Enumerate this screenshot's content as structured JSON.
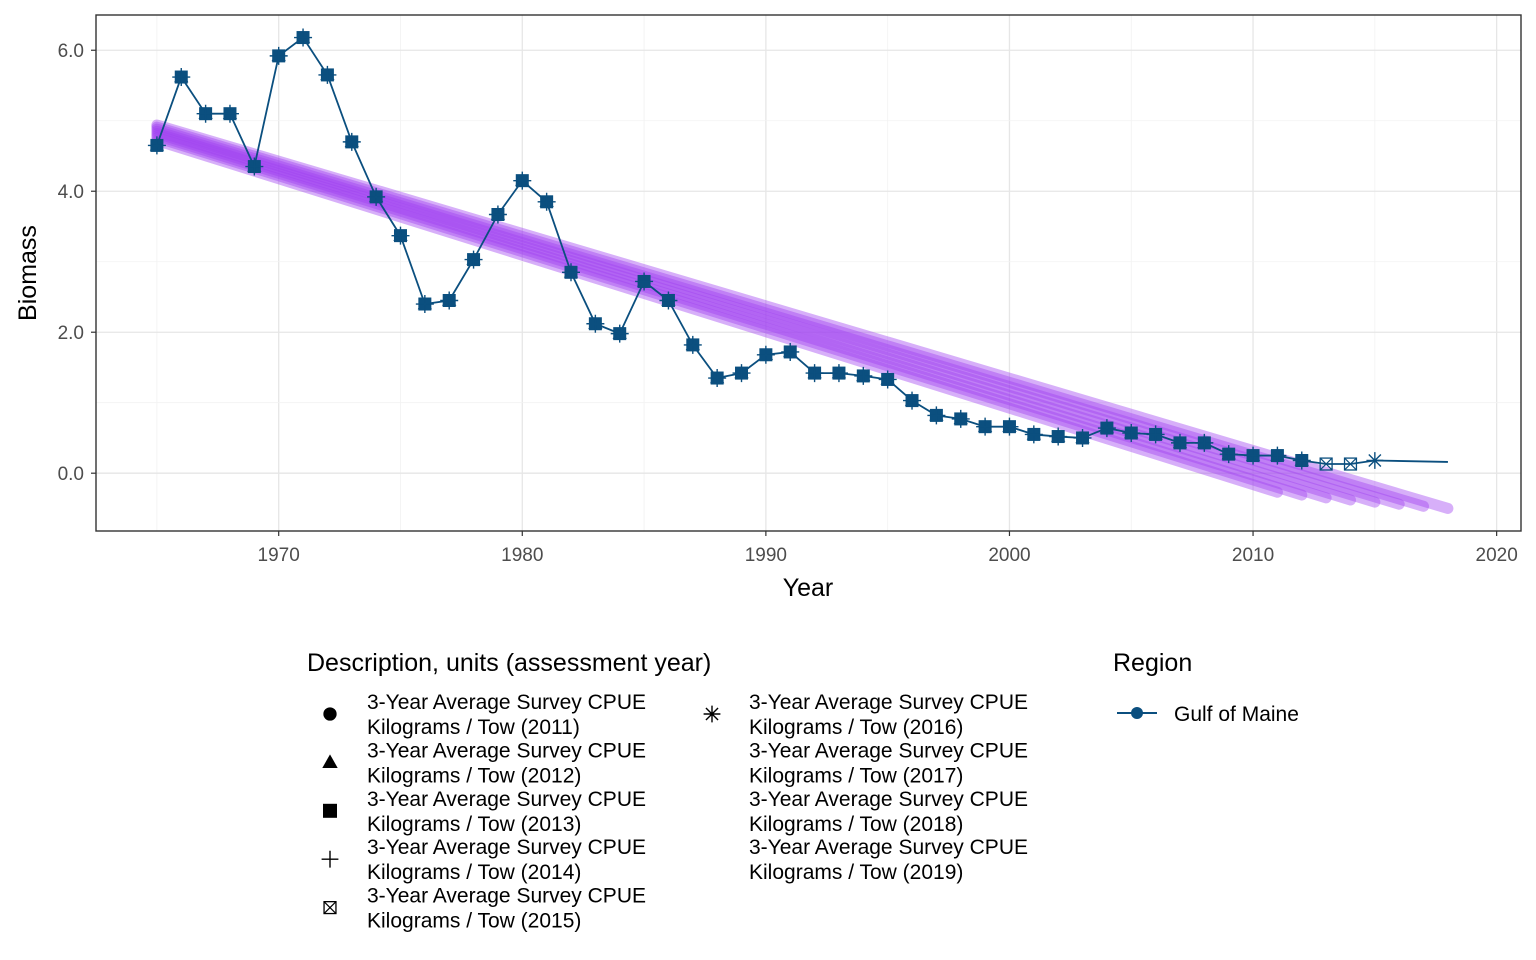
{
  "chart_data": {
    "type": "line",
    "xlabel": "Year",
    "ylabel": "Biomass",
    "xlim": [
      1962.5,
      2021
    ],
    "ylim": [
      -0.82,
      6.5
    ],
    "x_ticks": [
      1970,
      1980,
      1990,
      2000,
      2010,
      2020
    ],
    "x_tick_labels": [
      "1970",
      "1980",
      "1990",
      "2000",
      "2010",
      "2020"
    ],
    "y_ticks": [
      0,
      2,
      4,
      6
    ],
    "y_tick_labels": [
      "0.0",
      "2.0",
      "4.0",
      "6.0"
    ],
    "grid": true,
    "series_color": "#0b4f7f",
    "trend_color": "#a040f0",
    "series": [
      {
        "name": "Gulf of Maine",
        "x": [
          1965,
          1966,
          1967,
          1968,
          1969,
          1970,
          1971,
          1972,
          1973,
          1974,
          1975,
          1976,
          1977,
          1978,
          1979,
          1980,
          1981,
          1982,
          1983,
          1984,
          1985,
          1986,
          1987,
          1988,
          1989,
          1990,
          1991,
          1992,
          1993,
          1994,
          1995,
          1996,
          1997,
          1998,
          1999,
          2000,
          2001,
          2002,
          2003,
          2004,
          2005,
          2006,
          2007,
          2008,
          2009,
          2010,
          2011,
          2012,
          2013,
          2014,
          2015
        ],
        "y": [
          4.65,
          5.62,
          5.1,
          5.1,
          4.35,
          5.92,
          6.18,
          5.65,
          4.7,
          3.92,
          3.37,
          2.4,
          2.45,
          3.03,
          3.67,
          4.15,
          3.85,
          2.85,
          2.12,
          1.98,
          2.72,
          2.45,
          1.82,
          1.35,
          1.42,
          1.68,
          1.72,
          1.42,
          1.42,
          1.38,
          1.33,
          1.03,
          0.82,
          0.77,
          0.66,
          0.66,
          0.55,
          0.52,
          0.5,
          0.64,
          0.57,
          0.55,
          0.43,
          0.43,
          0.27,
          0.25,
          0.25,
          0.18,
          0.13,
          0.13,
          0.18
        ]
      }
    ],
    "extension": {
      "x": [
        2015,
        2018
      ],
      "y": [
        0.18,
        0.16
      ]
    },
    "trend_lines": [
      {
        "x": [
          1965,
          2011
        ],
        "y": [
          4.72,
          -0.27
        ]
      },
      {
        "x": [
          1965,
          2012
        ],
        "y": [
          4.76,
          -0.31
        ]
      },
      {
        "x": [
          1965,
          2013
        ],
        "y": [
          4.79,
          -0.35
        ]
      },
      {
        "x": [
          1965,
          2014
        ],
        "y": [
          4.82,
          -0.38
        ]
      },
      {
        "x": [
          1965,
          2015
        ],
        "y": [
          4.85,
          -0.41
        ]
      },
      {
        "x": [
          1965,
          2016
        ],
        "y": [
          4.88,
          -0.44
        ]
      },
      {
        "x": [
          1965,
          2017
        ],
        "y": [
          4.91,
          -0.47
        ]
      },
      {
        "x": [
          1965,
          2018
        ],
        "y": [
          4.94,
          -0.5
        ]
      }
    ],
    "marker_by_year": {
      "2013": "box-x",
      "2014": "box-x",
      "2015": "asterisk"
    },
    "legend_shapes": {
      "title": "Description, units (assessment year)",
      "entries": [
        {
          "line1": "3-Year Average Survey CPUE",
          "line2": "Kilograms / Tow (2011)",
          "shape": "circle"
        },
        {
          "line1": "3-Year Average Survey CPUE",
          "line2": "Kilograms / Tow (2012)",
          "shape": "triangle"
        },
        {
          "line1": "3-Year Average Survey CPUE",
          "line2": "Kilograms / Tow (2013)",
          "shape": "square"
        },
        {
          "line1": "3-Year Average Survey CPUE",
          "line2": "Kilograms / Tow (2014)",
          "shape": "plus"
        },
        {
          "line1": "3-Year Average Survey CPUE",
          "line2": "Kilograms / Tow (2015)",
          "shape": "box-x"
        },
        {
          "line1": "3-Year Average Survey CPUE",
          "line2": "Kilograms / Tow (2016)",
          "shape": "asterisk"
        },
        {
          "line1": "3-Year Average Survey CPUE",
          "line2": "Kilograms / Tow (2017)",
          "shape": "none"
        },
        {
          "line1": "3-Year Average Survey CPUE",
          "line2": "Kilograms / Tow (2018)",
          "shape": "none"
        },
        {
          "line1": "3-Year Average Survey CPUE",
          "line2": "Kilograms / Tow (2019)",
          "shape": "none"
        }
      ]
    },
    "legend_region": {
      "title": "Region",
      "entries": [
        {
          "label": "Gulf of Maine"
        }
      ]
    }
  }
}
